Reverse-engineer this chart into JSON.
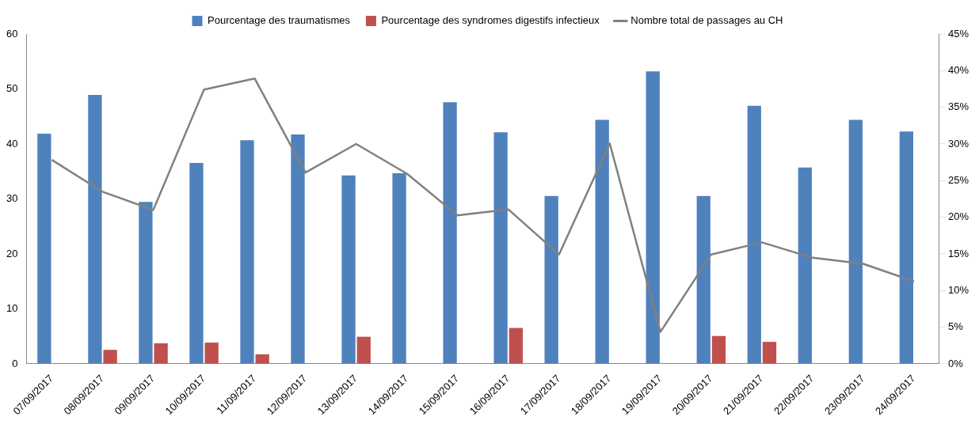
{
  "chart_data": {
    "type": "bar",
    "categories": [
      "07/09/2017",
      "08/09/2017",
      "09/09/2017",
      "10/09/2017",
      "11/09/2017",
      "12/09/2017",
      "13/09/2017",
      "14/09/2017",
      "15/09/2017",
      "16/09/2017",
      "17/09/2017",
      "18/09/2017",
      "19/09/2017",
      "20/09/2017",
      "21/09/2017",
      "22/09/2017",
      "23/09/2017",
      "24/09/2017"
    ],
    "series": [
      {
        "name": "Pourcentage des traumatismes",
        "axis": "y2",
        "color": "#4f81bd",
        "values": [
          31.4,
          36.7,
          22.1,
          27.4,
          30.5,
          31.3,
          25.7,
          26.0,
          35.7,
          31.6,
          22.9,
          33.3,
          39.9,
          22.9,
          35.2,
          26.8,
          33.3,
          31.7
        ]
      },
      {
        "name": "Pourcentage des syndromes digestifs infectieux",
        "axis": "y2",
        "color": "#c0504d",
        "values": [
          0,
          1.9,
          2.8,
          2.9,
          1.3,
          0,
          3.7,
          0,
          0,
          4.9,
          0,
          0,
          0,
          3.8,
          3.0,
          0,
          0,
          0
        ]
      },
      {
        "name": "Nombre total de passages au CH",
        "type": "line",
        "color": "#808080",
        "values": [
          37.1,
          31.3,
          28.0,
          49.9,
          51.9,
          34.8,
          40.0,
          34.6,
          27.0,
          28.1,
          19.9,
          40.1,
          5.8,
          19.9,
          22.1,
          19.3,
          18.2,
          15.0
        ]
      }
    ],
    "ylim": [
      0,
      60
    ],
    "yticks": [
      0,
      10,
      20,
      30,
      40,
      50,
      60
    ],
    "y2lim": [
      0,
      45
    ],
    "y2ticks": [
      {
        "value": 0,
        "label": "0%"
      },
      {
        "value": 5,
        "label": "5%"
      },
      {
        "value": 10,
        "label": "10%"
      },
      {
        "value": 15,
        "label": "15%"
      },
      {
        "value": 20,
        "label": "20%"
      },
      {
        "value": 25,
        "label": "25%"
      },
      {
        "value": 30,
        "label": "30%"
      },
      {
        "value": 35,
        "label": "35%"
      },
      {
        "value": 40,
        "label": "40%"
      },
      {
        "value": 45,
        "label": "45%"
      }
    ],
    "grid": false,
    "legend": "top",
    "marker": "none",
    "line_style": "solid"
  }
}
